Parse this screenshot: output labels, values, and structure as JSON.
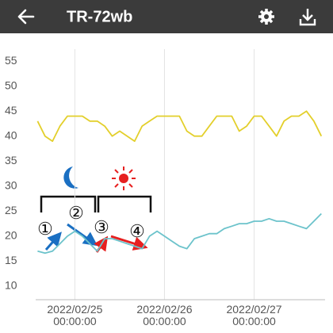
{
  "header": {
    "title": "TR-72wb"
  },
  "chart_data": {
    "type": "line",
    "x": [
      "2022/02/24 14:00:00",
      "2022/02/24 16:00:00",
      "2022/02/24 18:00:00",
      "2022/02/24 20:00:00",
      "2022/02/24 22:00:00",
      "2022/02/25 00:00:00",
      "2022/02/25 02:00:00",
      "2022/02/25 04:00:00",
      "2022/02/25 06:00:00",
      "2022/02/25 08:00:00",
      "2022/02/25 10:00:00",
      "2022/02/25 12:00:00",
      "2022/02/25 14:00:00",
      "2022/02/25 16:00:00",
      "2022/02/25 18:00:00",
      "2022/02/25 20:00:00",
      "2022/02/25 22:00:00",
      "2022/02/26 00:00:00",
      "2022/02/26 02:00:00",
      "2022/02/26 04:00:00",
      "2022/02/26 06:00:00",
      "2022/02/26 08:00:00",
      "2022/02/26 10:00:00",
      "2022/02/26 12:00:00",
      "2022/02/26 14:00:00",
      "2022/02/26 16:00:00",
      "2022/02/26 18:00:00",
      "2022/02/26 20:00:00",
      "2022/02/26 22:00:00",
      "2022/02/27 00:00:00",
      "2022/02/27 02:00:00",
      "2022/02/27 04:00:00",
      "2022/02/27 06:00:00",
      "2022/02/27 08:00:00",
      "2022/02/27 10:00:00",
      "2022/02/27 12:00:00",
      "2022/02/27 14:00:00",
      "2022/02/27 16:00:00",
      "2022/02/27 18:00:00"
    ],
    "series": [
      {
        "color": "#e3cf2b",
        "values": [
          43,
          40,
          39,
          42,
          44,
          44,
          44,
          43,
          43,
          42,
          40,
          41,
          40,
          39,
          42,
          43,
          44,
          44,
          44,
          44,
          41,
          40,
          40,
          42,
          44,
          44,
          44,
          41,
          42,
          44,
          44,
          42,
          40,
          43,
          44,
          44,
          45,
          43,
          40
        ]
      },
      {
        "color": "#6cc3cb",
        "values": [
          17,
          16.6,
          17,
          18.5,
          20,
          21,
          20,
          18.5,
          17,
          19.5,
          19.5,
          19,
          18.5,
          18,
          17.5,
          20,
          21,
          20,
          19,
          18,
          17.5,
          19.5,
          20,
          20.5,
          20.5,
          21.5,
          22,
          22.5,
          22.5,
          23,
          23,
          23.5,
          23,
          23,
          22.5,
          22,
          21.5,
          23,
          24.5
        ]
      }
    ],
    "xlim": [
      "2022/02/24 13:30:00",
      "2022/02/27 19:00:00"
    ],
    "xticks": [
      {
        "value": "2022/02/25 00:00:00",
        "label": "2022/02/25\n00:00:00"
      },
      {
        "value": "2022/02/26 00:00:00",
        "label": "2022/02/26\n00:00:00"
      },
      {
        "value": "2022/02/27 00:00:00",
        "label": "2022/02/27\n00:00:00"
      }
    ],
    "ylim": [
      7.3,
      57.4
    ],
    "yticks": [
      10,
      15,
      20,
      25,
      30,
      35,
      40,
      45,
      50,
      55
    ],
    "grid": "x",
    "annotations": [
      "①",
      "②",
      "③",
      "④"
    ]
  }
}
